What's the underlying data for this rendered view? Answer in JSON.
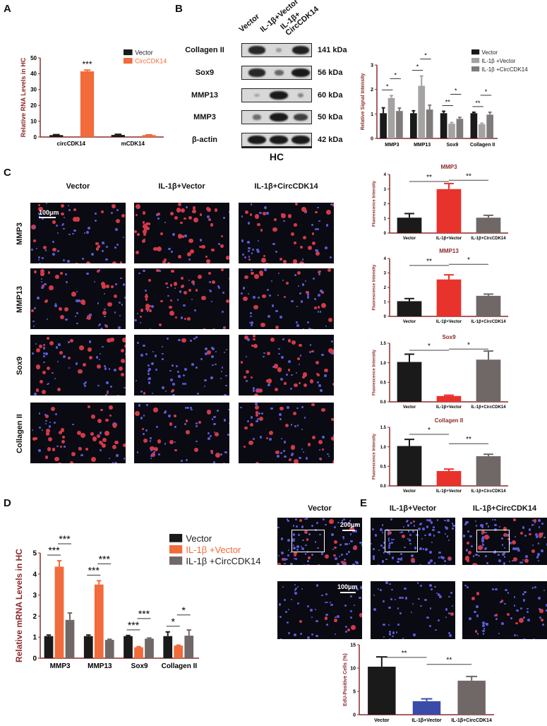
{
  "panels": {
    "A": "A",
    "B": "B",
    "C": "C",
    "D": "D",
    "E": "E"
  },
  "colors": {
    "axis": "#8b2a2a",
    "black": "#1a1a1a",
    "orange": "#f26b3a",
    "red": "#e8322c",
    "gray": "#6f6866",
    "lightgray": "#a5a2a2",
    "midgray": "#807b7b",
    "blue": "#3b4ba8"
  },
  "blot": {
    "columns": [
      "Vector",
      "IL-1β+Vector",
      "IL-1β+ CircCDK14"
    ],
    "rows": [
      {
        "label": "Collagen II",
        "kda": "141 kDa",
        "bands": [
          0.9,
          0.15,
          0.95
        ]
      },
      {
        "label": "Sox9",
        "kda": "56 kDa",
        "bands": [
          0.9,
          0.5,
          1.0
        ]
      },
      {
        "label": "MMP13",
        "kda": "60 kDa",
        "bands": [
          0.1,
          1.0,
          0.3
        ]
      },
      {
        "label": "MMP3",
        "kda": "50 kDa",
        "bands": [
          0.45,
          1.0,
          0.75
        ]
      },
      {
        "label": "β-actin",
        "kda": "42 kDa",
        "bands": [
          1,
          1,
          1
        ]
      }
    ],
    "group": "HC"
  },
  "micrographs": {
    "C": {
      "columns": [
        "Vector",
        "IL-1β+Vector",
        "IL-1β+CircCDK14"
      ],
      "rows": [
        "MMP3",
        "MMP13",
        "Sox9",
        "Collagen II"
      ],
      "scale": "100μm"
    },
    "E": {
      "columns": [
        "Vector",
        "IL-1β+Vector",
        "IL-1β+CircCDK14"
      ],
      "scale_top": "200μm",
      "scale_bottom": "100μm"
    }
  },
  "chart_data": [
    {
      "id": "A",
      "type": "bar",
      "title": "",
      "ylabel": "Relative RNA Levels in HC",
      "ylim": [
        0,
        50
      ],
      "yticks": [
        0,
        10,
        20,
        30,
        40,
        50
      ],
      "categories": [
        "circCDK14",
        "mCDK14"
      ],
      "series": [
        {
          "name": "Vector",
          "color": "#1a1a1a",
          "values": [
            1.2,
            1.3
          ],
          "errors": [
            0.3,
            0.4
          ]
        },
        {
          "name": "CircCDK14",
          "color": "#f26b3a",
          "values": [
            41.5,
            1.2
          ],
          "errors": [
            0.8,
            0.2
          ]
        }
      ],
      "significance": [
        {
          "category": 0,
          "label": "***"
        }
      ],
      "legend": "top-right"
    },
    {
      "id": "B",
      "type": "bar",
      "title": "",
      "ylabel": "Relative Signal Intensity",
      "ylim": [
        0,
        3
      ],
      "yticks": [
        0,
        1,
        2,
        3
      ],
      "categories": [
        "MMP3",
        "MMP13",
        "Sox9",
        "Collagen II"
      ],
      "series": [
        {
          "name": "Vector",
          "color": "#1a1a1a",
          "values": [
            1.03,
            1.03,
            1.03,
            1.03
          ],
          "errors": [
            0.22,
            0.1,
            0.08,
            0.04
          ]
        },
        {
          "name": "IL-1β +Vector",
          "color": "#a5a2a2",
          "values": [
            1.65,
            2.15,
            0.6,
            0.58
          ],
          "errors": [
            0.1,
            0.4,
            0.05,
            0.04
          ]
        },
        {
          "name": "IL-1β +CircCDK14",
          "color": "#807b7b",
          "values": [
            1.12,
            1.18,
            0.8,
            0.97
          ],
          "errors": [
            0.12,
            0.18,
            0.06,
            0.1
          ]
        }
      ],
      "significance": [
        {
          "category": 0,
          "pairs": [
            "*",
            "*"
          ]
        },
        {
          "category": 1,
          "pairs": [
            "*",
            "*"
          ]
        },
        {
          "category": 2,
          "pairs": [
            "**",
            "*"
          ]
        },
        {
          "category": 3,
          "pairs": [
            "**",
            "*"
          ]
        }
      ],
      "legend": "top-right"
    },
    {
      "id": "C1",
      "type": "bar",
      "title": "MMP3",
      "ylabel": "Fluorescence Intensity",
      "ylim": [
        0,
        4
      ],
      "yticks": [
        0,
        1,
        2,
        3,
        4
      ],
      "categories": [
        "Vector",
        "IL-1β+Vector",
        "IL-1β+CircCDK14"
      ],
      "values": [
        1.05,
        3.0,
        1.05
      ],
      "errors": [
        0.28,
        0.38,
        0.16
      ],
      "colors": [
        "#1a1a1a",
        "#e8322c",
        "#6f6866"
      ],
      "significance": [
        "**",
        "**"
      ]
    },
    {
      "id": "C2",
      "type": "bar",
      "title": "MMP13",
      "ylabel": "Fluorescence Intensity",
      "ylim": [
        0,
        4
      ],
      "yticks": [
        0,
        1,
        2,
        3,
        4
      ],
      "categories": [
        "Vector",
        "IL-1β+Vector",
        "IL-1β+CircCDK14"
      ],
      "values": [
        1.05,
        2.55,
        1.42
      ],
      "errors": [
        0.18,
        0.32,
        0.12
      ],
      "colors": [
        "#1a1a1a",
        "#e8322c",
        "#6f6866"
      ],
      "significance": [
        "**",
        "*"
      ]
    },
    {
      "id": "C3",
      "type": "bar",
      "title": "Sox9",
      "ylabel": "Fluorescence Intensity",
      "ylim": [
        0,
        1.5
      ],
      "yticks": [
        "0.0",
        "0.5",
        "1.0",
        "1.5"
      ],
      "categories": [
        "Vector",
        "IL-1β+Vector",
        "IL-1β+CircCDK14"
      ],
      "values": [
        1.02,
        0.15,
        1.08
      ],
      "errors": [
        0.2,
        0.02,
        0.22
      ],
      "colors": [
        "#1a1a1a",
        "#e8322c",
        "#6f6866"
      ],
      "significance": [
        "*",
        "*"
      ]
    },
    {
      "id": "C4",
      "type": "bar",
      "title": "Collagen II",
      "ylabel": "Fluorescence Intensity",
      "ylim": [
        0,
        1.5
      ],
      "yticks": [
        "0.0",
        "0.5",
        "1.0",
        "1.5"
      ],
      "categories": [
        "Vector",
        "IL-1β+Vector",
        "IL-1β+CircCDK14"
      ],
      "values": [
        1.02,
        0.38,
        0.76
      ],
      "errors": [
        0.17,
        0.05,
        0.05
      ],
      "colors": [
        "#1a1a1a",
        "#e8322c",
        "#6f6866"
      ],
      "significance": [
        "*",
        "**"
      ]
    },
    {
      "id": "D",
      "type": "bar",
      "title": "",
      "ylabel": "Relative mRNA Levels in HC",
      "ylim": [
        0,
        5
      ],
      "yticks": [
        0,
        1,
        2,
        3,
        4,
        5
      ],
      "categories": [
        "MMP3",
        "MMP13",
        "Sox9",
        "Collagen II"
      ],
      "series": [
        {
          "name": "Vector",
          "color": "#1a1a1a",
          "values": [
            1.05,
            1.05,
            1.05,
            1.05
          ],
          "errors": [
            0.05,
            0.05,
            0.03,
            0.2
          ]
        },
        {
          "name": "IL-1β +Vector",
          "color": "#f26b3a",
          "values": [
            4.35,
            3.5,
            0.52,
            0.6
          ],
          "errors": [
            0.28,
            0.18,
            0.03,
            0.02
          ]
        },
        {
          "name": "IL-1β +CircCDK14",
          "color": "#6f6866",
          "values": [
            1.82,
            0.87,
            0.93,
            1.07
          ],
          "errors": [
            0.33,
            0.03,
            0.03,
            0.27
          ]
        }
      ],
      "significance": [
        {
          "category": 0,
          "pairs": [
            "***",
            "***"
          ]
        },
        {
          "category": 1,
          "pairs": [
            "***",
            "***"
          ]
        },
        {
          "category": 2,
          "pairs": [
            "***",
            "***"
          ]
        },
        {
          "category": 3,
          "pairs": [
            "*",
            "*"
          ]
        }
      ],
      "legend": "top-right"
    },
    {
      "id": "E",
      "type": "bar",
      "title": "",
      "ylabel": "EdU-Positive Cells (%)",
      "ylim": [
        0,
        15
      ],
      "yticks": [
        0,
        5,
        10,
        15
      ],
      "categories": [
        "Vector",
        "IL-1β+Vector",
        "IL-1β+CircCDK14"
      ],
      "values": [
        10.3,
        2.9,
        7.3
      ],
      "errors": [
        2.1,
        0.5,
        0.9
      ],
      "colors": [
        "#1a1a1a",
        "#3b4ba8",
        "#6f6866"
      ],
      "significance": [
        "**",
        "**"
      ]
    }
  ]
}
